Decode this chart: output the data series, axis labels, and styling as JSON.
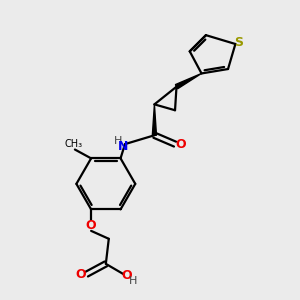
{
  "background_color": "#ebebeb",
  "bond_color": "#000000",
  "S_color": "#999900",
  "N_color": "#0000ee",
  "O_color": "#ee0000",
  "H_color": "#444444",
  "figsize": [
    3.0,
    3.0
  ],
  "dpi": 100,
  "xlim": [
    0,
    10
  ],
  "ylim": [
    0,
    10
  ]
}
